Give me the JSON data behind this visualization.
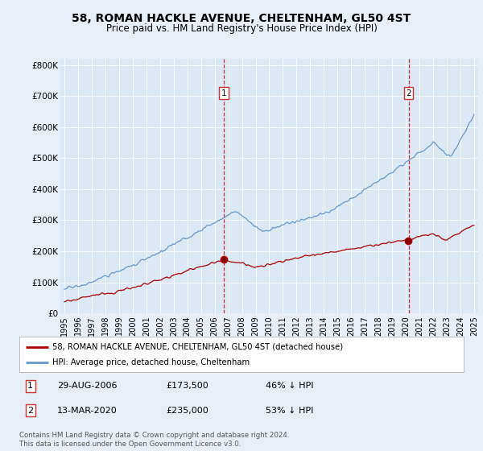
{
  "title": "58, ROMAN HACKLE AVENUE, CHELTENHAM, GL50 4ST",
  "subtitle": "Price paid vs. HM Land Registry's House Price Index (HPI)",
  "legend_label_red": "58, ROMAN HACKLE AVENUE, CHELTENHAM, GL50 4ST (detached house)",
  "legend_label_blue": "HPI: Average price, detached house, Cheltenham",
  "annotation1_date": "29-AUG-2006",
  "annotation1_price": "£173,500",
  "annotation1_pct": "46% ↓ HPI",
  "annotation1_year": 2006.67,
  "annotation1_value_red": 173500,
  "annotation2_date": "13-MAR-2020",
  "annotation2_price": "£235,000",
  "annotation2_pct": "53% ↓ HPI",
  "annotation2_year": 2020.2,
  "annotation2_value_red": 235000,
  "footer": "Contains HM Land Registry data © Crown copyright and database right 2024.\nThis data is licensed under the Open Government Licence v3.0.",
  "bg_color": "#e8eef5",
  "plot_bg_color": "#dce8f4",
  "red_color": "#aa0000",
  "blue_color": "#6699cc",
  "ylim_min": 0,
  "ylim_max": 820000,
  "xlim_min": 1994.7,
  "xlim_max": 2025.3
}
